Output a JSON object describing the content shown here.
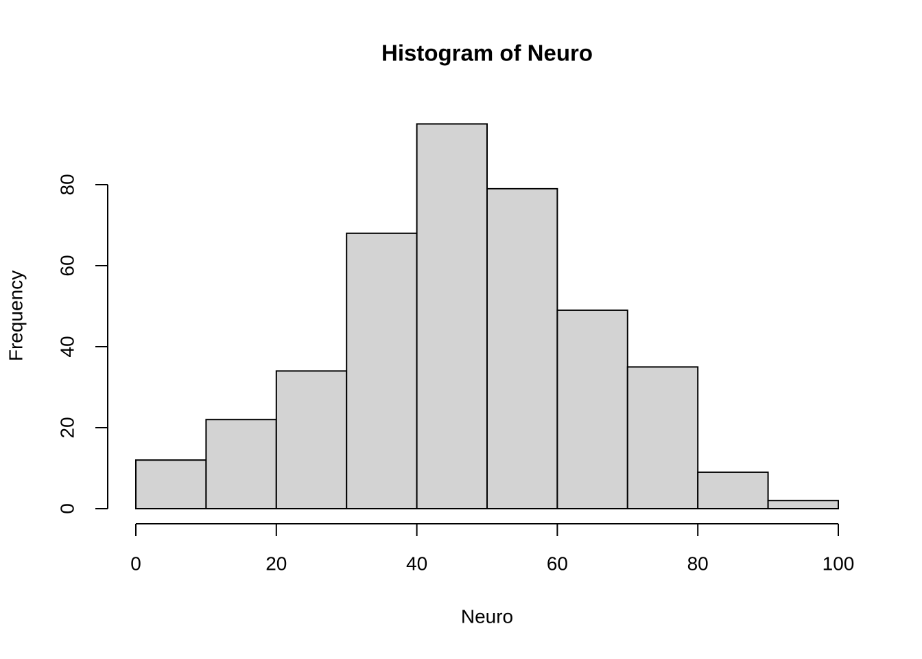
{
  "chart_data": {
    "type": "histogram",
    "title": "Histogram of Neuro",
    "x_label": "Neuro",
    "y_label": "Frequency",
    "bins": [
      0,
      10,
      20,
      30,
      40,
      50,
      60,
      70,
      80,
      90,
      100
    ],
    "values": [
      12,
      22,
      34,
      68,
      95,
      79,
      49,
      35,
      9,
      2
    ],
    "color": "#d3d3d3",
    "xlim": [
      0,
      100
    ],
    "xticks": [
      0,
      20,
      40,
      60,
      80,
      100
    ],
    "ylim": [
      0,
      95
    ],
    "yticks": [
      0,
      20,
      40,
      60,
      80
    ]
  }
}
